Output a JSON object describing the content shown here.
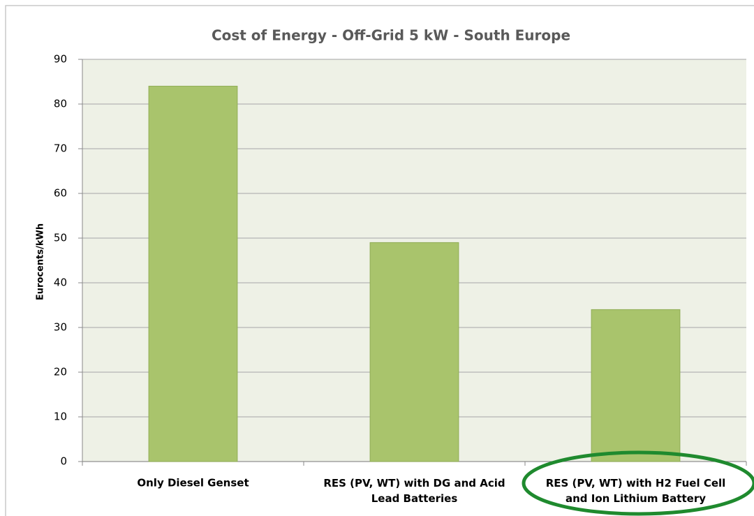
{
  "chart_data": {
    "type": "bar",
    "title": "Cost of Energy - Off-Grid 5 kW - South Europe",
    "y_label": "Eurocents/kWh",
    "categories": [
      "Only Diesel Genset",
      "RES (PV, WT) with DG and Acid\nLead Batteries",
      "RES (PV, WT) with H2 Fuel Cell\nand Ion Lithium Battery"
    ],
    "values": [
      84,
      49,
      34
    ],
    "color": "#a9c46c",
    "ylim": [
      0,
      90
    ],
    "yticks": [
      0,
      10,
      20,
      30,
      40,
      50,
      60,
      70,
      80,
      90
    ],
    "grid": true
  }
}
